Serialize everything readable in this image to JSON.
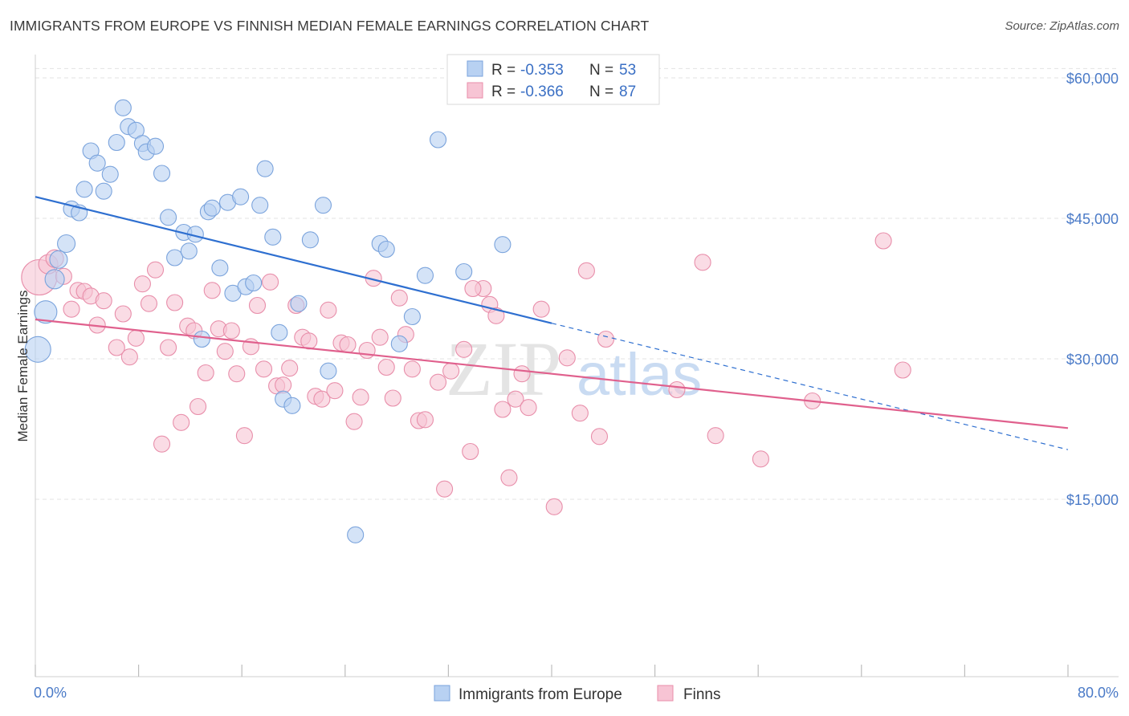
{
  "title": "IMMIGRANTS FROM EUROPE VS FINNISH MEDIAN FEMALE EARNINGS CORRELATION CHART",
  "source": "Source: ZipAtlas.com",
  "watermark": {
    "zip": "ZIP",
    "atlas": "atlas"
  },
  "colors": {
    "blue_fill": "#b8d1f2",
    "blue_stroke": "#7aa3dc",
    "blue_line": "#2e6fd0",
    "pink_fill": "#f7c4d4",
    "pink_stroke": "#e88eaa",
    "pink_line": "#e0608d",
    "tick_text": "#4a7ac7",
    "grid": "#e3e3e3"
  },
  "legend_top": {
    "r_label": "R =",
    "n_label": "N =",
    "rows": [
      {
        "series": "blue",
        "r": "-0.353",
        "n": "53"
      },
      {
        "series": "pink",
        "r": "-0.366",
        "n": "87"
      }
    ]
  },
  "legend_bottom": [
    {
      "series": "blue",
      "label": "Immigrants from Europe"
    },
    {
      "series": "pink",
      "label": "Finns"
    }
  ],
  "chart_data": {
    "type": "scatter",
    "title": "IMMIGRANTS FROM EUROPE VS FINNISH MEDIAN FEMALE EARNINGS CORRELATION CHART",
    "xlabel": "",
    "ylabel": "Median Female Earnings",
    "xlim": [
      0,
      80
    ],
    "ylim": [
      0,
      62000
    ],
    "x_tick_labels": {
      "left": "0.0%",
      "right": "80.0%"
    },
    "y_ticks": [
      {
        "value": 15000,
        "label": "$15,000"
      },
      {
        "value": 30000,
        "label": "$30,000"
      },
      {
        "value": 45000,
        "label": "$45,000"
      },
      {
        "value": 60000,
        "label": "$60,000"
      }
    ],
    "grid": true,
    "legend_position": "top-center",
    "series": [
      {
        "name": "Immigrants from Europe",
        "color": "blue",
        "trend": {
          "x0": 0,
          "y0": 47300,
          "x1": 40,
          "y1": 33800,
          "dashed_to_x": 80,
          "dashed_to_y": 20300
        },
        "points": [
          [
            0.2,
            31000,
            16
          ],
          [
            0.8,
            35000,
            14
          ],
          [
            1.5,
            38500,
            12
          ],
          [
            1.8,
            40600,
            11
          ],
          [
            2.4,
            42300,
            11
          ],
          [
            2.8,
            46000,
            10
          ],
          [
            3.4,
            45600,
            10
          ],
          [
            3.8,
            48100,
            10
          ],
          [
            4.3,
            52200,
            10
          ],
          [
            4.8,
            50900,
            10
          ],
          [
            5.3,
            47900,
            10
          ],
          [
            5.8,
            49700,
            10
          ],
          [
            6.3,
            53100,
            10
          ],
          [
            6.8,
            56800,
            10
          ],
          [
            7.2,
            54800,
            10
          ],
          [
            7.8,
            54400,
            10
          ],
          [
            8.3,
            53000,
            10
          ],
          [
            8.6,
            52100,
            10
          ],
          [
            9.3,
            52700,
            10
          ],
          [
            9.8,
            49800,
            10
          ],
          [
            10.3,
            45100,
            10
          ],
          [
            10.8,
            40800,
            10
          ],
          [
            11.5,
            43500,
            10
          ],
          [
            11.9,
            41500,
            10
          ],
          [
            12.4,
            43300,
            10
          ],
          [
            12.9,
            32100,
            10
          ],
          [
            13.4,
            45700,
            10
          ],
          [
            13.7,
            46100,
            10
          ],
          [
            14.3,
            39700,
            10
          ],
          [
            14.9,
            46700,
            10
          ],
          [
            15.3,
            37000,
            10
          ],
          [
            15.9,
            47300,
            10
          ],
          [
            16.3,
            37700,
            10
          ],
          [
            16.9,
            38100,
            10
          ],
          [
            17.4,
            46400,
            10
          ],
          [
            17.8,
            50300,
            10
          ],
          [
            18.4,
            43000,
            10
          ],
          [
            18.9,
            32800,
            10
          ],
          [
            19.2,
            25700,
            10
          ],
          [
            19.9,
            25000,
            10
          ],
          [
            20.4,
            35900,
            10
          ],
          [
            21.3,
            42700,
            10
          ],
          [
            22.3,
            46400,
            10
          ],
          [
            22.7,
            28700,
            10
          ],
          [
            26.7,
            42300,
            10
          ],
          [
            27.2,
            41700,
            10
          ],
          [
            28.2,
            31600,
            10
          ],
          [
            29.2,
            34500,
            10
          ],
          [
            30.2,
            38900,
            10
          ],
          [
            31.2,
            53400,
            10
          ],
          [
            33.2,
            39300,
            10
          ],
          [
            36.2,
            42200,
            10
          ],
          [
            24.8,
            11200,
            10
          ]
        ]
      },
      {
        "name": "Finns",
        "color": "pink",
        "trend": {
          "x0": 0,
          "y0": 34200,
          "x1": 80,
          "y1": 22600
        },
        "points": [
          [
            0.3,
            38700,
            22
          ],
          [
            1.0,
            40100,
            12
          ],
          [
            1.5,
            40700,
            11
          ],
          [
            2.2,
            38800,
            10
          ],
          [
            2.8,
            35300,
            10
          ],
          [
            3.3,
            37300,
            10
          ],
          [
            3.8,
            37200,
            10
          ],
          [
            4.3,
            36700,
            10
          ],
          [
            4.8,
            33600,
            10
          ],
          [
            5.3,
            36200,
            10
          ],
          [
            6.3,
            31200,
            10
          ],
          [
            6.8,
            34800,
            10
          ],
          [
            7.3,
            30200,
            10
          ],
          [
            7.8,
            32200,
            10
          ],
          [
            8.3,
            38000,
            10
          ],
          [
            8.8,
            35900,
            10
          ],
          [
            9.3,
            39500,
            10
          ],
          [
            9.8,
            20900,
            10
          ],
          [
            10.3,
            31200,
            10
          ],
          [
            10.8,
            36000,
            10
          ],
          [
            11.3,
            23200,
            10
          ],
          [
            11.8,
            33500,
            10
          ],
          [
            12.3,
            33000,
            10
          ],
          [
            12.6,
            24900,
            10
          ],
          [
            13.2,
            28500,
            10
          ],
          [
            13.7,
            37300,
            10
          ],
          [
            14.2,
            33200,
            10
          ],
          [
            14.7,
            30800,
            10
          ],
          [
            15.2,
            33000,
            10
          ],
          [
            15.6,
            28400,
            10
          ],
          [
            16.2,
            21800,
            10
          ],
          [
            16.7,
            31300,
            10
          ],
          [
            17.2,
            35700,
            10
          ],
          [
            17.7,
            28900,
            10
          ],
          [
            18.2,
            38200,
            10
          ],
          [
            18.7,
            27100,
            10
          ],
          [
            19.2,
            27200,
            10
          ],
          [
            19.7,
            29000,
            10
          ],
          [
            20.2,
            35700,
            10
          ],
          [
            20.7,
            32300,
            10
          ],
          [
            21.2,
            31900,
            10
          ],
          [
            21.7,
            26000,
            10
          ],
          [
            22.2,
            25700,
            10
          ],
          [
            22.7,
            35200,
            10
          ],
          [
            23.2,
            26600,
            10
          ],
          [
            23.7,
            31700,
            10
          ],
          [
            24.2,
            31500,
            10
          ],
          [
            24.7,
            23300,
            10
          ],
          [
            25.2,
            25900,
            10
          ],
          [
            25.7,
            30900,
            10
          ],
          [
            26.2,
            38600,
            10
          ],
          [
            26.7,
            32300,
            10
          ],
          [
            27.2,
            29100,
            10
          ],
          [
            27.7,
            25800,
            10
          ],
          [
            28.2,
            36500,
            10
          ],
          [
            28.7,
            32600,
            10
          ],
          [
            29.2,
            28900,
            10
          ],
          [
            29.7,
            23400,
            10
          ],
          [
            30.2,
            23500,
            10
          ],
          [
            31.2,
            27500,
            10
          ],
          [
            31.7,
            16100,
            10
          ],
          [
            32.2,
            28700,
            10
          ],
          [
            33.2,
            31000,
            10
          ],
          [
            33.7,
            20100,
            10
          ],
          [
            34.7,
            37500,
            10
          ],
          [
            35.2,
            35800,
            10
          ],
          [
            35.7,
            34600,
            10
          ],
          [
            36.2,
            24600,
            10
          ],
          [
            36.7,
            17300,
            10
          ],
          [
            37.2,
            25700,
            10
          ],
          [
            37.7,
            28400,
            10
          ],
          [
            38.2,
            24800,
            10
          ],
          [
            39.2,
            35300,
            10
          ],
          [
            40.2,
            14200,
            10
          ],
          [
            41.2,
            30100,
            10
          ],
          [
            42.2,
            24200,
            10
          ],
          [
            42.7,
            39400,
            10
          ],
          [
            43.7,
            21700,
            10
          ],
          [
            44.2,
            32100,
            10
          ],
          [
            49.7,
            26700,
            10
          ],
          [
            51.7,
            40300,
            10
          ],
          [
            52.7,
            21800,
            10
          ],
          [
            56.2,
            19300,
            10
          ],
          [
            60.2,
            25500,
            10
          ],
          [
            65.7,
            42600,
            10
          ],
          [
            67.2,
            28800,
            10
          ],
          [
            33.9,
            37500,
            10
          ]
        ]
      }
    ]
  }
}
